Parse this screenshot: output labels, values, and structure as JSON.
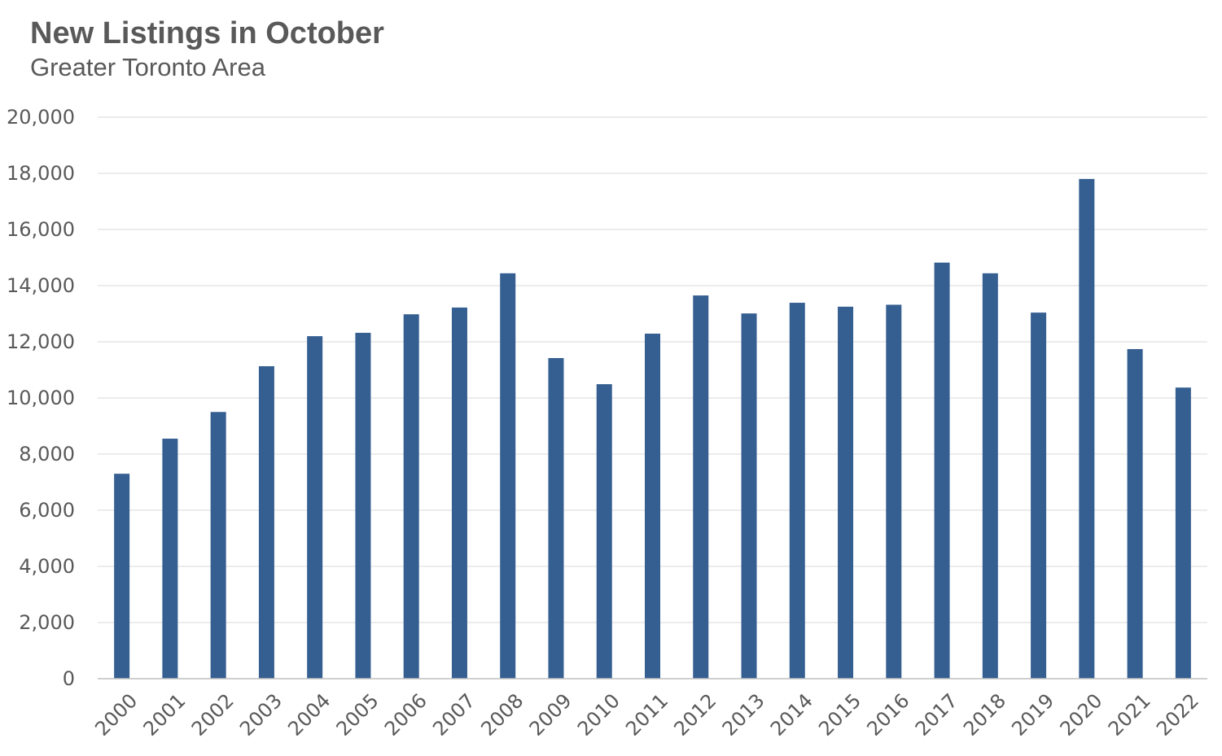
{
  "chart_data": {
    "type": "bar",
    "title": "New Listings in October",
    "subtitle": "Greater Toronto Area",
    "xlabel": "",
    "ylabel": "",
    "categories": [
      "2000",
      "2001",
      "2002",
      "2003",
      "2004",
      "2005",
      "2006",
      "2007",
      "2008",
      "2009",
      "2010",
      "2011",
      "2012",
      "2013",
      "2014",
      "2015",
      "2016",
      "2017",
      "2018",
      "2019",
      "2020",
      "2021",
      "2022"
    ],
    "values": [
      7300,
      8550,
      9500,
      11130,
      12200,
      12320,
      12980,
      13220,
      14440,
      11420,
      10490,
      12290,
      13650,
      13010,
      13390,
      13250,
      13320,
      14820,
      14440,
      13040,
      17800,
      11740,
      10370
    ],
    "ylim": [
      0,
      20000
    ],
    "yticks": [
      "0",
      "2,000",
      "4,000",
      "6,000",
      "8,000",
      "10,000",
      "12,000",
      "14,000",
      "16,000",
      "18,000",
      "20,000"
    ],
    "grid": true,
    "legend": "none",
    "bar_color": "#365f91"
  }
}
